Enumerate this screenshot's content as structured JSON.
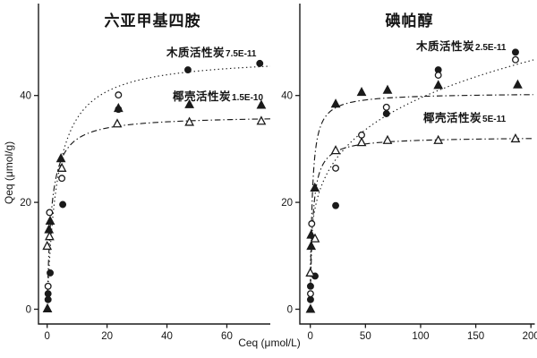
{
  "figure": {
    "xlabel": "Ceq (μmol/L)",
    "ylabel": "Qeq (μmol/g)",
    "background": "#ffffff",
    "ink": "#1a1a1a"
  },
  "chart_data": [
    {
      "panel": "left",
      "type": "scatter",
      "title": "六亚甲基四胺",
      "xlabel": "Ceq (μmol/L)",
      "ylabel": "Qeq (μmol/g)",
      "xlim": [
        -2,
        75
      ],
      "ylim": [
        -3,
        57
      ],
      "xticks": [
        0,
        20,
        40,
        60
      ],
      "yticks": [
        0,
        20,
        40
      ],
      "grid": false,
      "annotations": [
        {
          "label": "木质活性炭",
          "value": "7.5E-11"
        },
        {
          "label": "椰壳活性炭",
          "value": "1.5E-10"
        }
      ],
      "series": [
        {
          "name": "木质活性炭-filled",
          "marker": "circle-filled",
          "points": [
            [
              0.3,
              1.8
            ],
            [
              0.3,
              2.9
            ],
            [
              1.0,
              6.8
            ],
            [
              5.2,
              19.6
            ],
            [
              23.8,
              37.4
            ],
            [
              47,
              44.8
            ],
            [
              71,
              46.0
            ]
          ]
        },
        {
          "name": "木质活性炭-open",
          "marker": "circle-open",
          "points": [
            [
              0.3,
              4.3
            ],
            [
              0.8,
              18.1
            ],
            [
              4.9,
              24.5
            ],
            [
              23.8,
              40.1
            ]
          ]
        },
        {
          "name": "椰壳活性炭-filled",
          "marker": "triangle-filled",
          "points": [
            [
              0.1,
              0.1
            ],
            [
              0.6,
              14.9
            ],
            [
              1.0,
              16.5
            ],
            [
              4.6,
              28.2
            ],
            [
              23.8,
              37.6
            ],
            [
              47.5,
              38.3
            ],
            [
              71.5,
              38.2
            ]
          ]
        },
        {
          "name": "椰壳活性炭-open",
          "marker": "triangle-open",
          "points": [
            [
              0,
              11.8
            ],
            [
              0.8,
              13.6
            ],
            [
              4.9,
              26.4
            ],
            [
              23.4,
              34.7
            ],
            [
              47.5,
              35.0
            ],
            [
              71.5,
              35.2
            ]
          ]
        }
      ],
      "fits": [
        {
          "name": "木质活性炭-fit",
          "style": "dotted",
          "model": "langmuir",
          "qm": 47.5,
          "K": 3.3,
          "range": [
            0.15,
            74.5
          ]
        },
        {
          "name": "椰壳活性炭-fit",
          "style": "dashdot",
          "model": "langmuir",
          "qm": 36.3,
          "K": 1.4,
          "range": [
            0.15,
            74.5
          ]
        }
      ]
    },
    {
      "panel": "right",
      "type": "scatter",
      "title": "碘帕醇",
      "xlabel": "Ceq (μmol/L)",
      "ylabel": "Qeq (μmol/g)",
      "xlim": [
        -5,
        205
      ],
      "ylim": [
        -3,
        57
      ],
      "xticks": [
        0,
        50,
        100,
        150,
        200
      ],
      "yticks": [
        0,
        20,
        40
      ],
      "grid": false,
      "annotations": [
        {
          "label": "木质活性炭",
          "value": "2.5E-11"
        },
        {
          "label": "椰壳活性炭",
          "value": "5E-11"
        }
      ],
      "series": [
        {
          "name": "木质活性炭-filled",
          "marker": "circle-filled",
          "points": [
            [
              0.2,
              1.8
            ],
            [
              0.2,
              4.3
            ],
            [
              4.3,
              6.2
            ],
            [
              23,
              19.4
            ],
            [
              69,
              36.6
            ],
            [
              116,
              44.8
            ],
            [
              186,
              48.1
            ]
          ]
        },
        {
          "name": "木质活性炭-open",
          "marker": "circle-open",
          "points": [
            [
              0.2,
              2.9
            ],
            [
              1.3,
              16.0
            ],
            [
              23,
              26.4
            ],
            [
              46.5,
              32.6
            ],
            [
              69,
              37.8
            ],
            [
              116,
              43.8
            ],
            [
              186,
              46.7
            ]
          ]
        },
        {
          "name": "椰壳活性炭-filled",
          "marker": "triangle-filled",
          "points": [
            [
              0.2,
              0
            ],
            [
              0.8,
              11.8
            ],
            [
              0.8,
              13.9
            ],
            [
              4.1,
              22.7
            ],
            [
              23,
              38.4
            ],
            [
              46.5,
              40.6
            ],
            [
              70,
              41.0
            ],
            [
              116,
              41.9
            ],
            [
              188,
              42.0
            ]
          ]
        },
        {
          "name": "椰壳活性炭-open",
          "marker": "triangle-open",
          "points": [
            [
              0,
              6.8
            ],
            [
              4.3,
              13.2
            ],
            [
              23,
              29.7
            ],
            [
              46.5,
              31.2
            ],
            [
              70,
              31.6
            ],
            [
              116,
              31.6
            ],
            [
              186,
              31.9
            ]
          ]
        }
      ],
      "fits": [
        {
          "name": "木质活性炭-fit",
          "style": "dotted",
          "model": "freundlich",
          "a": 13.4,
          "b": 0.235,
          "range": [
            0.01,
            203
          ]
        },
        {
          "name": "椰壳活性炭-fit-filled",
          "style": "dashdot",
          "model": "langmuir",
          "qm": 40.5,
          "K": 1.7,
          "range": [
            0.1,
            202
          ]
        },
        {
          "name": "椰壳活性炭-fit-open",
          "style": "dashdot",
          "model": "langmuir",
          "qm": 32.3,
          "K": 2.2,
          "range": [
            0.1,
            202
          ]
        }
      ]
    }
  ]
}
